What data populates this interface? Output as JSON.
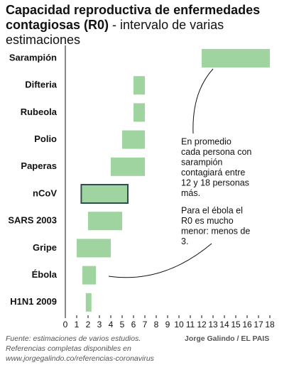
{
  "chart_data": {
    "type": "range_bar",
    "title": "Capacidad reproductiva de enfermedades contagiosas (R0)",
    "subtitle": "- intervalo de varias estimaciones",
    "categories": [
      "Sarampión",
      "Difteria",
      "Rubeola",
      "Polio",
      "Paperas",
      "nCoV",
      "SARS 2003",
      "Gripe",
      "Ébola",
      "H1N1 2009"
    ],
    "low": [
      12,
      6,
      6,
      5,
      4,
      1.4,
      2,
      1,
      1.5,
      1.8
    ],
    "high": [
      18,
      7,
      7,
      7,
      7,
      5.5,
      5,
      4,
      2.7,
      2.3
    ],
    "color": "#9fd39f",
    "highlight": "nCoV",
    "highlight_color": "#2e4d4d",
    "xlim": [
      0,
      18
    ],
    "xticks": [
      0,
      1,
      2,
      3,
      4,
      5,
      6,
      7,
      8,
      9,
      10,
      11,
      12,
      13,
      14,
      15,
      16,
      17,
      18
    ],
    "annotations": [
      [
        "En promedio",
        "cada persona con",
        "sarampión",
        "contagiará entre",
        "12 y 18 personas",
        "más."
      ],
      [
        "Para el ébola el",
        "R0 es mucho",
        "menor: menos de",
        "3."
      ]
    ],
    "source": [
      "Fuente: estimaciones de varios estudios.",
      "Referencias completas disponibles en",
      "www.jorgegalindo.co/referencias-coronavirus"
    ],
    "credit": "Jorge Galindo / EL PAIS"
  }
}
